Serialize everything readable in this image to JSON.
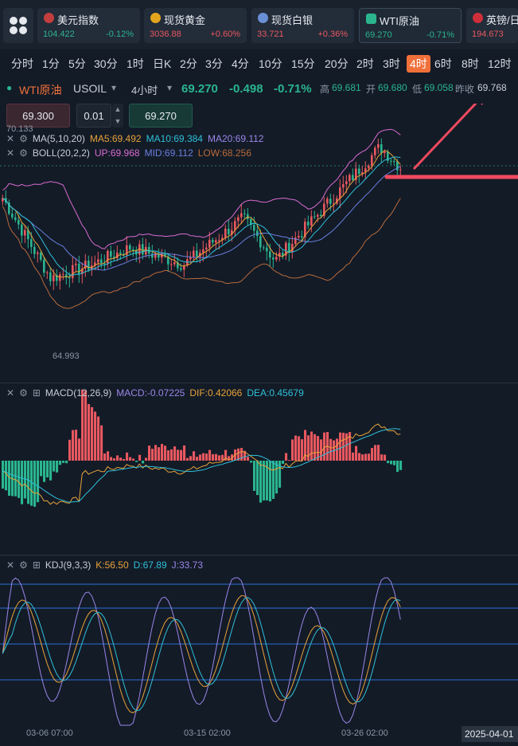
{
  "tickers": [
    {
      "name": "美元指数",
      "price": "104.422",
      "change": "-0.12%",
      "dir": "dn",
      "icon_color": "#c33f3f"
    },
    {
      "name": "现货黄金",
      "price": "3036.88",
      "change": "+0.60%",
      "dir": "up",
      "icon_color": "#e3a51d"
    },
    {
      "name": "现货白银",
      "price": "33.721",
      "change": "+0.36%",
      "dir": "up",
      "icon_color": "#6a8fd6"
    },
    {
      "name": "WTI原油",
      "price": "69.270",
      "change": "-0.71%",
      "dir": "dn",
      "icon_color": "#2ab58f"
    },
    {
      "name": "英镑/日",
      "price": "194.673",
      "change": "",
      "dir": "up",
      "icon_color": "#cf2f3a"
    }
  ],
  "periods": [
    "分时",
    "1分",
    "5分",
    "30分",
    "1时",
    "日K",
    "2分",
    "3分",
    "4分",
    "10分",
    "15分",
    "20分",
    "2时",
    "3时",
    "4时",
    "6时",
    "8时",
    "12时"
  ],
  "selected_period": "4时",
  "symbol": {
    "name": "WTI原油",
    "code": "USOIL",
    "interval": "4小时",
    "price": "69.270",
    "change": "-0.498",
    "change_pct": "-0.71%",
    "high_label": "高",
    "high": "69.681",
    "open_label": "开",
    "open": "69.680",
    "low_label": "低",
    "low": "69.058",
    "prev_label": "昨收",
    "prev": "69.768"
  },
  "order": {
    "left_price": "69.300",
    "qty": "0.01",
    "right_price": "69.270"
  },
  "main_chart": {
    "ma_label": "MA(5,10,20)",
    "ma5": "MA5:69.492",
    "ma10": "MA10:69.384",
    "ma20": "MA20:69.112",
    "boll_label": "BOLL(20,2,2)",
    "up": "UP:69.968",
    "mid": "MID:69.112",
    "low": "LOW:68.256",
    "y_high": "70.133",
    "y_low": "64.993"
  },
  "macd": {
    "label": "MACD(12,26,9)",
    "macd": "MACD:-0.07225",
    "dif": "DIF:0.42066",
    "dea": "DEA:0.45679"
  },
  "kdj": {
    "label": "KDJ(9,3,3)",
    "k": "K:56.50",
    "d": "D:67.89",
    "j": "J:33.73"
  },
  "x_labels": [
    "03-06 07:00",
    "03-15 02:00",
    "03-26 02:00"
  ],
  "date_box": "2025-04-01",
  "colors": {
    "up": "#e8585f",
    "down": "#2ab58f",
    "accent": "#f0703a",
    "ma5": "#e8a33a",
    "ma10": "#2fc0d8",
    "ma20": "#9a86e8",
    "arrow": "#f04a5e"
  }
}
